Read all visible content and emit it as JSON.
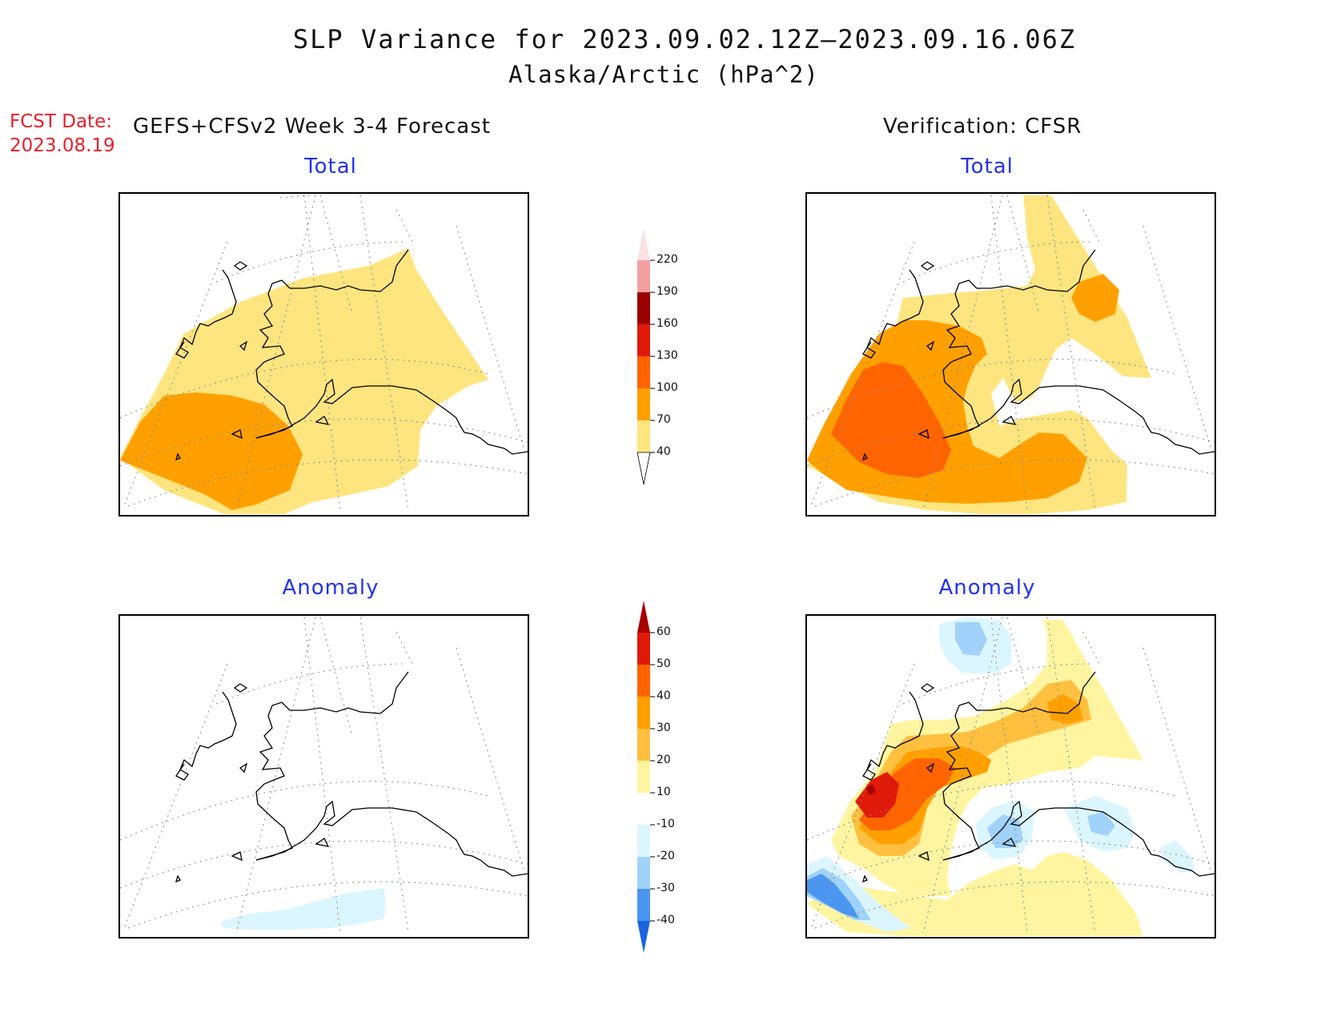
{
  "header": {
    "title": "SLP Variance for 2023.09.02.12Z–2023.09.16.06Z",
    "subtitle": "Alaska/Arctic (hPa^2)",
    "fcst_label": "FCST Date:",
    "fcst_date": "2023.08.19",
    "left_heading": "GEFS+CFSv2 Week 3-4 Forecast",
    "right_heading": "Verification: CFSR"
  },
  "panels": {
    "forecast_total": "Total",
    "verification_total": "Total",
    "forecast_anomaly": "Anomaly",
    "verification_anomaly": "Anomaly"
  },
  "colorbars": {
    "total": {
      "labels": [
        "220",
        "190",
        "160",
        "130",
        "100",
        "70",
        "40"
      ],
      "colors": [
        "#fbe2e2",
        "#f3a0a0",
        "#9b0000",
        "#e01a0a",
        "#ff6400",
        "#ffa000",
        "#ffe57f"
      ]
    },
    "anomaly": {
      "labels": [
        "60",
        "50",
        "40",
        "30",
        "20",
        "10",
        "-10",
        "-20",
        "-30",
        "-40"
      ],
      "colors": [
        "#a80000",
        "#e01a0a",
        "#ff6400",
        "#ffa000",
        "#ffc040",
        "#fff5a0",
        "#ffffff",
        "#dcf6ff",
        "#a0d2fa",
        "#4a96f0",
        "#1a64e0"
      ]
    }
  },
  "map_colors": {
    "c40": "#ffe57f",
    "c70": "#ffa000",
    "c100": "#ff6400",
    "c130": "#e01a0a",
    "a_pos10": "#fff5a0",
    "a_pos20": "#ffc040",
    "a_pos30": "#ffa000",
    "a_pos40": "#ff6400",
    "a_pos50": "#e01a0a",
    "a_pos60": "#a80000",
    "a_neg10": "#dcf6ff",
    "a_neg20": "#a0d2fa",
    "a_neg30": "#4a96f0"
  }
}
